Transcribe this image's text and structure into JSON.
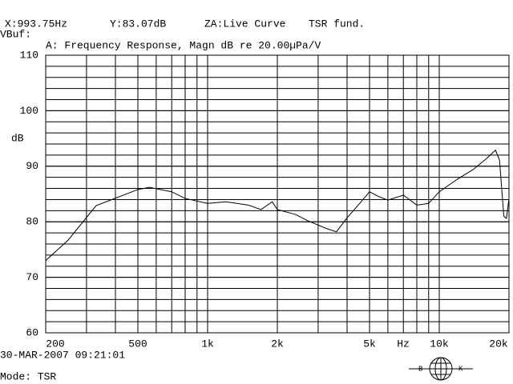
{
  "header": {
    "cursor_x": "X:993.75Hz",
    "cursor_y": "Y:83.07dB",
    "curve": "ZA:Live Curve",
    "mode_label": "TSR fund.",
    "buffer": "VBuf:"
  },
  "footer": {
    "timestamp": "30-MAR-2007 09:21:01",
    "mode": "Mode: TSR",
    "logo_left": "B",
    "logo_right": "K"
  },
  "chart_data": {
    "type": "line",
    "title": "A: Frequency Response, Magn dB re 20.00µPa/V",
    "ylabel": "dB",
    "xlabel": "Hz",
    "xscale": "log",
    "grid": true,
    "minor_y_step": 2,
    "xlim": [
      200,
      20000
    ],
    "ylim": [
      60,
      110
    ],
    "xticks": [
      200,
      500,
      {
        "value": 1000,
        "label": "1k"
      },
      {
        "value": 2000,
        "label": "2k"
      },
      {
        "value": 5000,
        "label": "5k"
      },
      {
        "value": 10000,
        "label": "10k"
      },
      {
        "value": 20000,
        "label": "20k"
      }
    ],
    "yticks": [
      60,
      70,
      80,
      90,
      100,
      110
    ],
    "series": [
      {
        "color": "#000000",
        "x": [
          200,
          250,
          330,
          500,
          560,
          700,
          800,
          1000,
          1200,
          1500,
          1700,
          1900,
          2000,
          2400,
          2700,
          3300,
          3600,
          4000,
          4600,
          5000,
          5500,
          6000,
          7000,
          8000,
          9000,
          10000,
          12000,
          14000,
          16000,
          17500,
          18200,
          19000,
          19500,
          20000
        ],
        "values": [
          73,
          76.7,
          82.9,
          85.8,
          86.2,
          85.4,
          84.2,
          83.3,
          83.6,
          83,
          82.2,
          83.6,
          82.2,
          81.3,
          80.2,
          78.7,
          78.2,
          80.7,
          83.6,
          85.4,
          84.5,
          83.9,
          84.8,
          83,
          83.3,
          85.4,
          87.7,
          89.4,
          91.4,
          92.9,
          91.1,
          81,
          80.6,
          84.2
        ]
      }
    ]
  }
}
